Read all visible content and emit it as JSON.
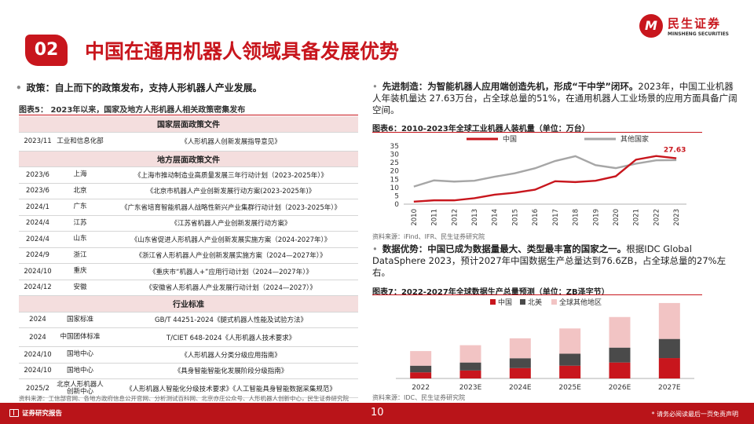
{
  "header": {
    "badge": "02",
    "title": "中国在通用机器人领域具备发展优势",
    "logo_mark": "M",
    "logo_cn": "民生证券",
    "logo_en": "MINSHENG SECURITIES"
  },
  "left": {
    "bullet": "•",
    "heading": "政策：自上而下的政策发布，支持人形机器人产业发展。",
    "table_caption": "图表5：  2023年以来，国家及地方人形机器人相关政策密集发布",
    "sections": [
      {
        "title": "国家层面政策文件",
        "rows": [
          [
            "2023/11",
            "工业和信息化部",
            "《人形机器人创新发展指导意见》"
          ]
        ]
      },
      {
        "title": "地方层面政策文件",
        "rows": [
          [
            "2023/6",
            "上海",
            "《上海市推动制造业高质量发展三年行动计划（2023-2025年）》"
          ],
          [
            "2023/6",
            "北京",
            "《北京市机器人产业创新发展行动方案(2023-2025年)》"
          ],
          [
            "2024/1",
            "广东",
            "《广东省培育智能机器人战略性新兴产业集群行动计划（2023-2025年）》"
          ],
          [
            "2024/4",
            "江苏",
            "《江苏省机器人产业创新发展行动方案》"
          ],
          [
            "2024/4",
            "山东",
            "《山东省促进人形机器人产业创新发展实施方案（2024-2027年）》"
          ],
          [
            "2024/9",
            "浙江",
            "《浙江省人形机器人产业创新发展实施方案（2024—2027年）》"
          ],
          [
            "2024/10",
            "重庆",
            "《重庆市“机器人+”应用行动计划（2024—2027年）》"
          ],
          [
            "2024/12",
            "安徽",
            "《安徽省人形机器人产业发展行动计划（2024—2027）》"
          ]
        ]
      },
      {
        "title": "行业标准",
        "rows": [
          [
            "2024",
            "国家标准",
            "GB/T 44251-2024《腿式机器人性能及试验方法》"
          ],
          [
            "2024",
            "中国团体标准",
            "T/CIET 648-2024《人形机器人技术要求》"
          ],
          [
            "2024/10",
            "国地中心",
            "《人形机器人分类分级应用指南》"
          ],
          [
            "2024/10",
            "国地中心",
            "《具身智能智能化发展阶段分级指南》"
          ],
          [
            "2025/2",
            "北京人形机器人创新中心",
            "《人形机器人智能化分级技术要求》《人工智能具身智能数据采集规范》"
          ]
        ]
      }
    ],
    "source": "资料来源：工信部官网、各地方政府信息公开官网、分析测试百科网、北京亦庄公众号、人形机器人创新中心，民生证券研究院"
  },
  "right": {
    "block1_bold": "先进制造：为智能机器人应用端创造先机，形成“干中学”闭环。",
    "block1_text": "2023年，中国工业机器人年装机量达 27.63万台，占全球总量的51%，在通用机器人工业场景的应用方面具备广阔空间。",
    "fig6_caption": "图表6：2010-2023年全球工业机器人装机量（单位：万台）",
    "fig6_source": "资料来源：iFind、IFR、民生证券研究院",
    "block2_bold": "数据优势：中国已成为数据量最大、类型最丰富的国家之一。",
    "block2_text": "根据IDC Global DataSphere 2023，预计2027年中国数据生产总量达到76.6ZB，占全球总量的27%左右。",
    "fig7_caption": "图表7：2022-2027年全球数据生产总量预测（单位：ZB泽字节）",
    "fig7_source": "资料来源：IDC、民生证券研究院"
  },
  "footer": {
    "left": "证券研究报告",
    "page": "10",
    "disclaimer": "* 请务必阅读最后一页免责声明"
  },
  "colors": {
    "brand": "#c8161d",
    "china": "#c8161d",
    "other": "#a6a6a6",
    "na": "#4a4a4a",
    "rest": "#f2c4c4"
  },
  "chart_data": [
    {
      "type": "line",
      "x": [
        "2010",
        "2011",
        "2012",
        "2013",
        "2014",
        "2015",
        "2016",
        "2017",
        "2018",
        "2019",
        "2020",
        "2021",
        "2022",
        "2023"
      ],
      "series": [
        {
          "name": "中国",
          "values": [
            1.5,
            2.3,
            2.3,
            3.6,
            5.7,
            6.9,
            8.7,
            13.8,
            13.3,
            14.1,
            16.8,
            26.8,
            29.0,
            27.63
          ]
        },
        {
          "name": "其他国家",
          "values": [
            10.6,
            14.3,
            13.6,
            14.1,
            16.5,
            18.6,
            21.6,
            26.0,
            28.9,
            23.5,
            21.7,
            24.4,
            26.4,
            26.5
          ]
        }
      ],
      "annotation": "27.63",
      "yticks": [
        0,
        5,
        10,
        15,
        20,
        25,
        30,
        35
      ],
      "ylim": [
        0,
        35
      ],
      "legend": "top"
    },
    {
      "type": "bar",
      "stacked": true,
      "categories": [
        "2022",
        "2023E",
        "2024E",
        "2025E",
        "2026E",
        "2027E"
      ],
      "series": [
        {
          "name": "中国",
          "values": [
            23,
            30,
            39,
            48,
            60,
            76.6
          ]
        },
        {
          "name": "北美",
          "values": [
            25,
            30,
            37,
            45,
            56,
            72
          ]
        },
        {
          "name": "全球其他地区",
          "values": [
            55,
            65,
            75,
            95,
            115,
            135
          ]
        }
      ],
      "legend": "top-left"
    }
  ]
}
